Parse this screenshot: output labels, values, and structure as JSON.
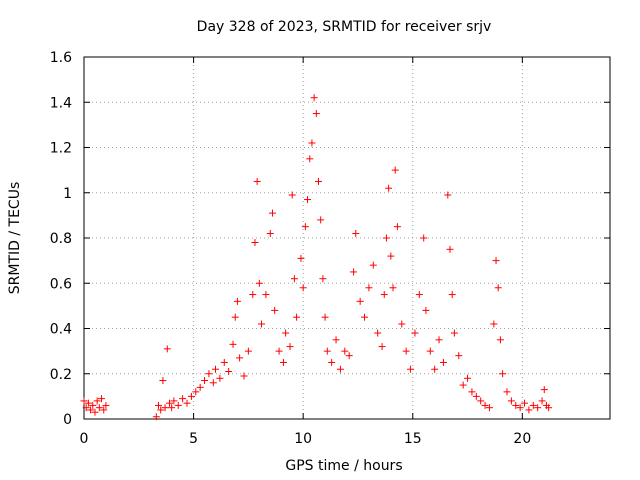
{
  "chart_data": {
    "type": "scatter",
    "title": "Day 328 of 2023, SRMTID for receiver srjv",
    "xlabel": "GPS time / hours",
    "ylabel": "SRMTID / TECUs",
    "xlim": [
      0,
      24
    ],
    "ylim": [
      0,
      1.6
    ],
    "x_ticks": [
      0,
      5,
      10,
      15,
      20
    ],
    "x_tick_labels": [
      "0",
      "5",
      "10",
      "15",
      "20"
    ],
    "y_ticks": [
      0,
      0.2,
      0.4,
      0.6,
      0.8,
      1,
      1.2,
      1.4,
      1.6
    ],
    "y_tick_labels": [
      "0",
      "0.2",
      "0.4",
      "0.6",
      "0.8",
      "1",
      "1.2",
      "1.4",
      "1.6"
    ],
    "grid": true,
    "marker": "+",
    "color": "#ff0000",
    "series": [
      {
        "name": "srjv",
        "points": [
          [
            0.0,
            0.08
          ],
          [
            0.1,
            0.05
          ],
          [
            0.2,
            0.07
          ],
          [
            0.3,
            0.04
          ],
          [
            0.4,
            0.06
          ],
          [
            0.5,
            0.03
          ],
          [
            0.6,
            0.08
          ],
          [
            0.7,
            0.05
          ],
          [
            0.8,
            0.09
          ],
          [
            0.9,
            0.04
          ],
          [
            1.0,
            0.06
          ],
          [
            3.3,
            0.01
          ],
          [
            3.4,
            0.06
          ],
          [
            3.5,
            0.04
          ],
          [
            3.6,
            0.17
          ],
          [
            3.7,
            0.05
          ],
          [
            3.8,
            0.31
          ],
          [
            3.9,
            0.07
          ],
          [
            4.0,
            0.05
          ],
          [
            4.1,
            0.08
          ],
          [
            4.3,
            0.06
          ],
          [
            4.5,
            0.09
          ],
          [
            4.7,
            0.07
          ],
          [
            4.9,
            0.1
          ],
          [
            5.1,
            0.12
          ],
          [
            5.3,
            0.14
          ],
          [
            5.5,
            0.17
          ],
          [
            5.7,
            0.2
          ],
          [
            5.9,
            0.16
          ],
          [
            6.0,
            0.22
          ],
          [
            6.2,
            0.18
          ],
          [
            6.4,
            0.25
          ],
          [
            6.6,
            0.21
          ],
          [
            6.8,
            0.33
          ],
          [
            6.9,
            0.45
          ],
          [
            7.0,
            0.52
          ],
          [
            7.1,
            0.27
          ],
          [
            7.3,
            0.19
          ],
          [
            7.5,
            0.3
          ],
          [
            7.7,
            0.55
          ],
          [
            7.8,
            0.78
          ],
          [
            7.9,
            1.05
          ],
          [
            8.0,
            0.6
          ],
          [
            8.1,
            0.42
          ],
          [
            8.3,
            0.55
          ],
          [
            8.5,
            0.82
          ],
          [
            8.6,
            0.91
          ],
          [
            8.7,
            0.48
          ],
          [
            8.9,
            0.3
          ],
          [
            9.1,
            0.25
          ],
          [
            9.2,
            0.38
          ],
          [
            9.4,
            0.32
          ],
          [
            9.5,
            0.99
          ],
          [
            9.6,
            0.62
          ],
          [
            9.7,
            0.45
          ],
          [
            9.9,
            0.71
          ],
          [
            10.0,
            0.58
          ],
          [
            10.1,
            0.85
          ],
          [
            10.2,
            0.97
          ],
          [
            10.3,
            1.15
          ],
          [
            10.4,
            1.22
          ],
          [
            10.5,
            1.42
          ],
          [
            10.6,
            1.35
          ],
          [
            10.7,
            1.05
          ],
          [
            10.8,
            0.88
          ],
          [
            10.9,
            0.62
          ],
          [
            11.0,
            0.45
          ],
          [
            11.1,
            0.3
          ],
          [
            11.3,
            0.25
          ],
          [
            11.5,
            0.35
          ],
          [
            11.7,
            0.22
          ],
          [
            11.9,
            0.3
          ],
          [
            12.1,
            0.28
          ],
          [
            12.3,
            0.65
          ],
          [
            12.4,
            0.82
          ],
          [
            12.6,
            0.52
          ],
          [
            12.8,
            0.45
          ],
          [
            13.0,
            0.58
          ],
          [
            13.2,
            0.68
          ],
          [
            13.4,
            0.38
          ],
          [
            13.6,
            0.32
          ],
          [
            13.7,
            0.55
          ],
          [
            13.8,
            0.8
          ],
          [
            13.9,
            1.02
          ],
          [
            14.0,
            0.72
          ],
          [
            14.1,
            0.58
          ],
          [
            14.2,
            1.1
          ],
          [
            14.3,
            0.85
          ],
          [
            14.5,
            0.42
          ],
          [
            14.7,
            0.3
          ],
          [
            14.9,
            0.22
          ],
          [
            15.1,
            0.38
          ],
          [
            15.3,
            0.55
          ],
          [
            15.5,
            0.8
          ],
          [
            15.6,
            0.48
          ],
          [
            15.8,
            0.3
          ],
          [
            16.0,
            0.22
          ],
          [
            16.2,
            0.35
          ],
          [
            16.4,
            0.25
          ],
          [
            16.6,
            0.99
          ],
          [
            16.7,
            0.75
          ],
          [
            16.8,
            0.55
          ],
          [
            16.9,
            0.38
          ],
          [
            17.1,
            0.28
          ],
          [
            17.3,
            0.15
          ],
          [
            17.5,
            0.18
          ],
          [
            17.7,
            0.12
          ],
          [
            17.9,
            0.1
          ],
          [
            18.1,
            0.08
          ],
          [
            18.3,
            0.06
          ],
          [
            18.5,
            0.05
          ],
          [
            18.7,
            0.42
          ],
          [
            18.8,
            0.7
          ],
          [
            18.9,
            0.58
          ],
          [
            19.0,
            0.35
          ],
          [
            19.1,
            0.2
          ],
          [
            19.3,
            0.12
          ],
          [
            19.5,
            0.08
          ],
          [
            19.7,
            0.06
          ],
          [
            19.9,
            0.05
          ],
          [
            20.1,
            0.07
          ],
          [
            20.3,
            0.04
          ],
          [
            20.5,
            0.06
          ],
          [
            20.7,
            0.05
          ],
          [
            20.9,
            0.08
          ],
          [
            21.0,
            0.13
          ],
          [
            21.1,
            0.06
          ],
          [
            21.2,
            0.05
          ]
        ]
      }
    ]
  }
}
